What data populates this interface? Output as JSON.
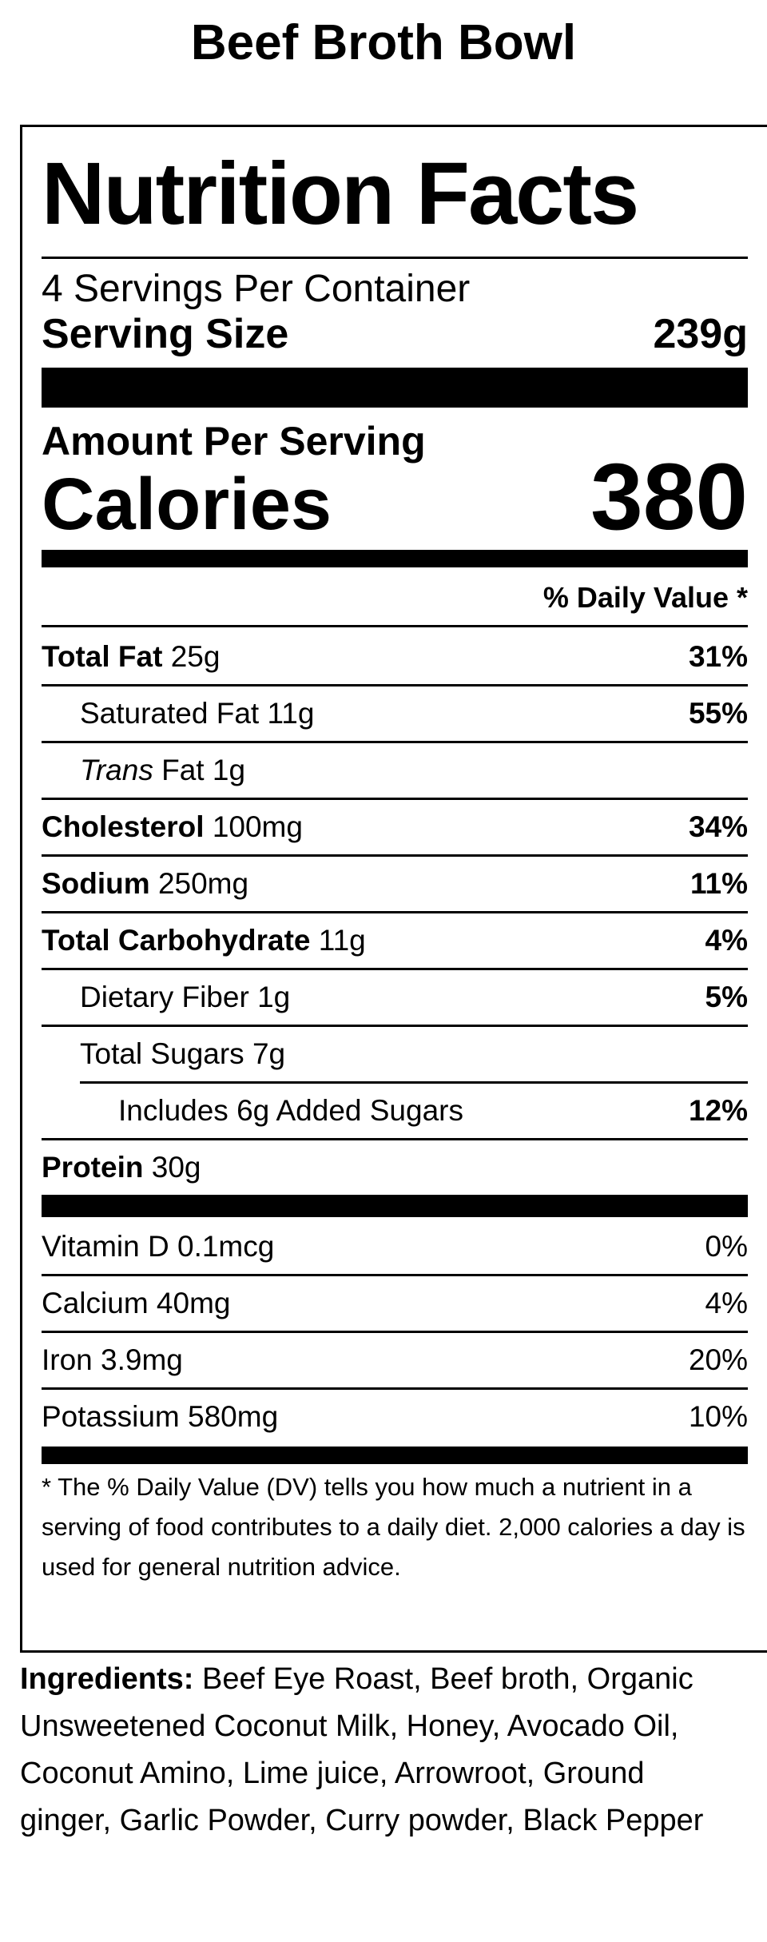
{
  "title": "Beef Broth Bowl",
  "label": {
    "heading": "Nutrition Facts",
    "servings": "4 Servings Per Container",
    "serving_size_label": "Serving Size",
    "serving_size": "239g",
    "amount_per_serving": "Amount Per Serving",
    "calories_label": "Calories",
    "calories": "380",
    "daily_value_header": "% Daily Value *",
    "nutrients": [
      {
        "name": "Total Fat",
        "amount": "25g",
        "dv": "31%",
        "sub": [
          {
            "name": "Saturated Fat",
            "amount": "11g",
            "dv": "55%"
          },
          {
            "name_prefix": "Trans",
            "name": "Fat",
            "amount": "1g"
          }
        ]
      },
      {
        "name": "Cholesterol",
        "amount": "100mg",
        "dv": "34%"
      },
      {
        "name": "Sodium",
        "amount": "250mg",
        "dv": "11%"
      },
      {
        "name": "Total Carbohydrate",
        "amount": "11g",
        "dv": "4%",
        "sub": [
          {
            "name": "Dietary Fiber",
            "amount": "1g",
            "dv": "5%"
          },
          {
            "name": "Total Sugars",
            "amount": "7g",
            "sub": [
              {
                "name": "Includes 6g Added Sugars",
                "dv": "12%"
              }
            ]
          }
        ]
      },
      {
        "name": "Protein",
        "amount": "30g"
      }
    ],
    "vitamins": [
      {
        "name": "Vitamin D",
        "amount": "0.1mcg",
        "dv": "0%"
      },
      {
        "name": "Calcium",
        "amount": "40mg",
        "dv": "4%"
      },
      {
        "name": "Iron",
        "amount": "3.9mg",
        "dv": "20%"
      },
      {
        "name": "Potassium",
        "amount": "580mg",
        "dv": "10%"
      }
    ],
    "footnote": "* The % Daily Value (DV) tells you how much a nutrient in a serving of food contributes to a daily diet. 2,000 calories a day is used for general nutrition advice."
  },
  "ingredients": {
    "label": "Ingredients:",
    "text": "Beef Eye Roast, Beef broth, Organic Unsweetened Coconut Milk, Honey, Avocado Oil, Coconut Amino, Lime juice, Arrowroot, Ground ginger, Garlic Powder, Curry powder, Black Pepper"
  }
}
